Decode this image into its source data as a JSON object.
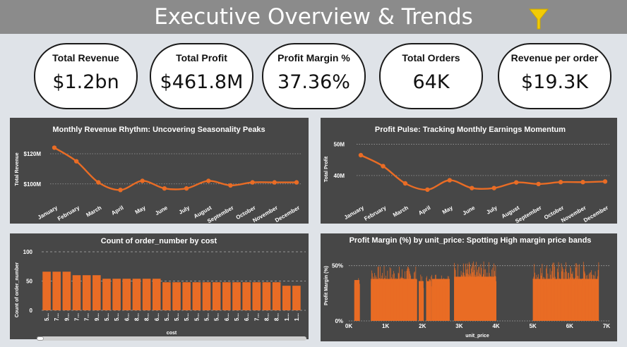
{
  "header": {
    "title": "Executive Overview & Trends"
  },
  "icons": {
    "filter": "filter-icon"
  },
  "colors": {
    "accent": "#e96c25",
    "panel": "#474747",
    "header": "#8b8b8b",
    "filter": "#f2cb05"
  },
  "kpis": [
    {
      "label": "Total Revenue",
      "value": "$1.2bn"
    },
    {
      "label": "Total Profit",
      "value": "$461.8M"
    },
    {
      "label": "Profit Margin %",
      "value": "37.36%"
    },
    {
      "label": "Total Orders",
      "value": "64K"
    },
    {
      "label": "Revenue  per order",
      "value": "$19.3K"
    }
  ],
  "chart_data": [
    {
      "type": "line",
      "title": "Monthly Revenue Rhythm: Uncovering Seasonality Peaks",
      "ylabel": "Total Revenue",
      "xlabel": "",
      "categories": [
        "January",
        "February",
        "March",
        "April",
        "May",
        "June",
        "July",
        "August",
        "September",
        "October",
        "November",
        "December"
      ],
      "values": [
        124,
        115,
        101,
        96,
        102,
        97,
        97,
        102,
        99,
        101,
        101,
        101
      ],
      "y_ticks": [
        {
          "v": 100,
          "label": "$100M"
        },
        {
          "v": 120,
          "label": "$120M"
        }
      ],
      "ylim": [
        91,
        127
      ],
      "grid": true
    },
    {
      "type": "line",
      "title": "Profit Pulse: Tracking Monthly Earnings Momentum",
      "ylabel": "Total Profit",
      "xlabel": "",
      "categories": [
        "January",
        "February",
        "March",
        "April",
        "May",
        "June",
        "July",
        "August",
        "September",
        "October",
        "November",
        "December"
      ],
      "values": [
        46.5,
        43,
        37.5,
        35.5,
        38.5,
        36,
        36,
        37.8,
        37.3,
        37.9,
        37.9,
        38.1
      ],
      "y_ticks": [
        {
          "v": 40,
          "label": "40M"
        },
        {
          "v": 50,
          "label": "50M"
        }
      ],
      "ylim": [
        33,
        51
      ],
      "grid": true
    },
    {
      "type": "bar",
      "title": "Count of order_number by cost",
      "ylabel": "Count of order_number",
      "xlabel": "cost",
      "categories": [
        "5...",
        "7...",
        "9...",
        "7...",
        "7...",
        "9...",
        "5...",
        "5...",
        "6...",
        "8...",
        "8...",
        "6...",
        "5...",
        "5...",
        "5...",
        "5...",
        "5...",
        "5...",
        "6...",
        "5...",
        "6...",
        "7...",
        "8...",
        "8...",
        "1...",
        "1..."
      ],
      "values": [
        66,
        66,
        66,
        60,
        60,
        60,
        54,
        54,
        54,
        54,
        54,
        54,
        48,
        48,
        48,
        48,
        48,
        48,
        48,
        48,
        48,
        48,
        48,
        48,
        42,
        42
      ],
      "y_ticks": [
        {
          "v": 0,
          "label": "0"
        },
        {
          "v": 50,
          "label": "50"
        },
        {
          "v": 100,
          "label": "100"
        }
      ],
      "ylim": [
        0,
        100
      ],
      "grid": true
    },
    {
      "type": "bar",
      "title": "Profit Margin (%) by unit_price: Spotting High margin price bands",
      "ylabel": "Profit Margin (%)",
      "xlabel": "unit_price",
      "x_ticks": [
        {
          "v": 0,
          "label": "0K"
        },
        {
          "v": 1000,
          "label": "1K"
        },
        {
          "v": 2000,
          "label": "2K"
        },
        {
          "v": 3000,
          "label": "3K"
        },
        {
          "v": 4000,
          "label": "4K"
        },
        {
          "v": 5000,
          "label": "5K"
        },
        {
          "v": 6000,
          "label": "6K"
        },
        {
          "v": 7000,
          "label": "7K"
        }
      ],
      "y_ticks": [
        {
          "v": 0,
          "label": "0%"
        },
        {
          "v": 50,
          "label": "50%"
        }
      ],
      "xlim": [
        0,
        7000
      ],
      "ylim": [
        0,
        60
      ],
      "bands": [
        {
          "x0": 150,
          "x1": 290,
          "typical": 37,
          "peak": 40
        },
        {
          "x0": 600,
          "x1": 1850,
          "typical": 38,
          "peak": 50
        },
        {
          "x0": 1900,
          "x1": 2030,
          "typical": 36,
          "peak": 42
        },
        {
          "x0": 2100,
          "x1": 2240,
          "typical": 36,
          "peak": 42
        },
        {
          "x0": 2250,
          "x1": 2740,
          "typical": 38,
          "peak": 44
        },
        {
          "x0": 2860,
          "x1": 4000,
          "typical": 40,
          "peak": 54
        },
        {
          "x0": 5000,
          "x1": 6780,
          "typical": 38,
          "peak": 54
        }
      ],
      "grid": true
    }
  ]
}
